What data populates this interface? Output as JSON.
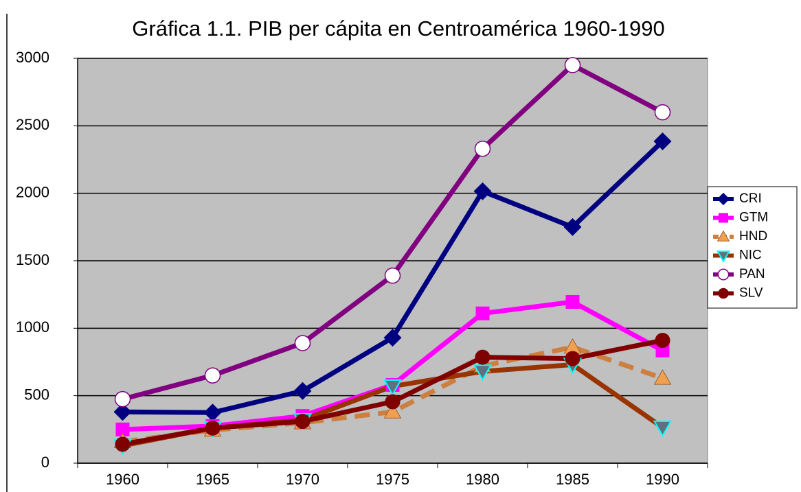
{
  "chart_data": {
    "type": "line",
    "title": "Gráfica 1.1. PIB per cápita en Centroamérica 1960-1990",
    "categories": [
      "1960",
      "1965",
      "1970",
      "1975",
      "1980",
      "1985",
      "1990"
    ],
    "ylim": [
      0,
      3000
    ],
    "yticks": [
      0,
      500,
      1000,
      1500,
      2000,
      2500,
      3000
    ],
    "grid": true,
    "legend": "right",
    "plot_background": "#c0c0c0",
    "series": [
      {
        "name": "CRI",
        "color": "#000080",
        "line_color": "#000080",
        "marker": "diamond",
        "dashed": false,
        "values": [
          380,
          375,
          535,
          930,
          2015,
          1750,
          2385
        ]
      },
      {
        "name": "GTM",
        "color": "#ff00ff",
        "line_color": "#ff00ff",
        "marker": "square",
        "dashed": false,
        "values": [
          250,
          275,
          350,
          580,
          1110,
          1195,
          835
        ]
      },
      {
        "name": "HND",
        "color": "#f0a050",
        "line_color": "#cc7f3f",
        "marker": "triangle-up",
        "dashed": true,
        "values": [
          160,
          245,
          300,
          380,
          720,
          860,
          630
        ]
      },
      {
        "name": "NIC",
        "color": "#00ffff",
        "line_color": "#993300",
        "marker": "triangle-down",
        "dashed": false,
        "values": [
          130,
          260,
          320,
          570,
          680,
          730,
          265
        ]
      },
      {
        "name": "PAN",
        "color": "#800080",
        "line_color": "#800080",
        "marker": "circle-open",
        "dashed": false,
        "values": [
          475,
          650,
          890,
          1390,
          2330,
          2950,
          2600
        ]
      },
      {
        "name": "SLV",
        "color": "#800000",
        "line_color": "#800000",
        "marker": "circle",
        "dashed": false,
        "values": [
          140,
          260,
          310,
          455,
          785,
          775,
          910
        ]
      }
    ]
  }
}
